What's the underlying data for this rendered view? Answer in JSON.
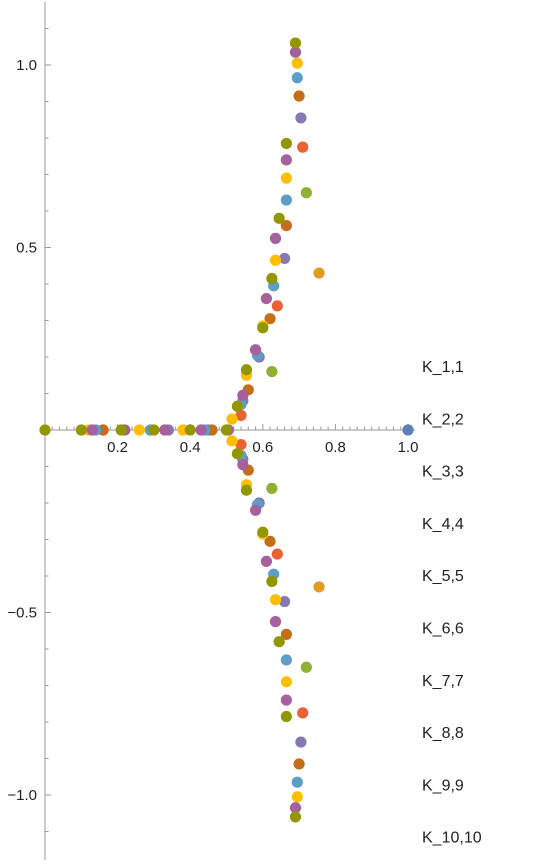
{
  "chart_data": {
    "type": "scatter",
    "title": "",
    "xlabel": "",
    "ylabel": "",
    "xlim": [
      0.0,
      1.0
    ],
    "ylim": [
      -1.2,
      1.2
    ],
    "x_ticks": [
      "0.2",
      "0.4",
      "0.6",
      "0.8",
      "1.0"
    ],
    "y_ticks": [
      "-1.0",
      "-0.5",
      "0.5",
      "1.0"
    ],
    "legend_position": "right",
    "grid": false,
    "legend": [
      "K_1,1",
      "K_2,2",
      "K_3,3",
      "K_4,4",
      "K_5,5",
      "K_6,6",
      "K_7,7",
      "K_8,8",
      "K_9,9",
      "K_10,10"
    ],
    "series": [
      {
        "color": "#5e81b5",
        "points": [
          [
            1.0,
            0.0
          ]
        ]
      },
      {
        "color": "#e19c24",
        "points": [
          [
            0.755,
            0.43
          ],
          [
            0.755,
            -0.43
          ]
        ]
      },
      {
        "color": "#8fb032",
        "points": [
          [
            0.72,
            0.65
          ],
          [
            0.72,
            -0.65
          ],
          [
            0.625,
            0.16
          ],
          [
            0.625,
            -0.16
          ]
        ]
      },
      {
        "color": "#eb6235",
        "points": [
          [
            0.71,
            0.775
          ],
          [
            0.71,
            -0.775
          ],
          [
            0.64,
            0.34
          ],
          [
            0.64,
            -0.34
          ],
          [
            0.54,
            0.04
          ],
          [
            0.54,
            -0.04
          ],
          [
            0.16,
            0.0
          ]
        ]
      },
      {
        "color": "#8778b3",
        "points": [
          [
            0.705,
            0.855
          ],
          [
            0.705,
            -0.855
          ],
          [
            0.66,
            0.47
          ],
          [
            0.66,
            -0.47
          ],
          [
            0.59,
            0.2
          ],
          [
            0.59,
            -0.2
          ],
          [
            0.545,
            0.08
          ],
          [
            0.545,
            -0.08
          ],
          [
            0.45,
            0.0
          ],
          [
            0.34,
            0.0
          ]
        ]
      },
      {
        "color": "#c56e1a",
        "points": [
          [
            0.7,
            0.915
          ],
          [
            0.7,
            -0.915
          ],
          [
            0.665,
            0.56
          ],
          [
            0.665,
            -0.56
          ],
          [
            0.62,
            0.305
          ],
          [
            0.62,
            -0.305
          ],
          [
            0.56,
            0.11
          ],
          [
            0.56,
            -0.11
          ],
          [
            0.46,
            0.0
          ],
          [
            0.16,
            0.0
          ]
        ]
      },
      {
        "color": "#5d9ec7",
        "points": [
          [
            0.695,
            0.965
          ],
          [
            0.695,
            -0.965
          ],
          [
            0.665,
            0.63
          ],
          [
            0.665,
            -0.63
          ],
          [
            0.63,
            0.395
          ],
          [
            0.63,
            -0.395
          ],
          [
            0.585,
            0.205
          ],
          [
            0.585,
            -0.205
          ],
          [
            0.54,
            0.07
          ],
          [
            0.54,
            -0.07
          ],
          [
            0.44,
            0.0
          ],
          [
            0.29,
            0.0
          ],
          [
            0.14,
            0.0
          ]
        ]
      },
      {
        "color": "#ffbf00",
        "points": [
          [
            0.695,
            1.005
          ],
          [
            0.695,
            -1.005
          ],
          [
            0.665,
            0.69
          ],
          [
            0.665,
            -0.69
          ],
          [
            0.635,
            0.465
          ],
          [
            0.635,
            -0.465
          ],
          [
            0.6,
            0.285
          ],
          [
            0.6,
            -0.285
          ],
          [
            0.555,
            0.15
          ],
          [
            0.555,
            -0.15
          ],
          [
            0.515,
            0.03
          ],
          [
            0.515,
            -0.03
          ],
          [
            0.38,
            0.0
          ],
          [
            0.26,
            0.0
          ],
          [
            0.12,
            0.0
          ]
        ]
      },
      {
        "color": "#a5609d",
        "points": [
          [
            0.69,
            1.035
          ],
          [
            0.69,
            -1.035
          ],
          [
            0.665,
            0.74
          ],
          [
            0.665,
            -0.74
          ],
          [
            0.635,
            0.525
          ],
          [
            0.635,
            -0.525
          ],
          [
            0.61,
            0.36
          ],
          [
            0.61,
            -0.36
          ],
          [
            0.58,
            0.22
          ],
          [
            0.58,
            -0.22
          ],
          [
            0.545,
            0.095
          ],
          [
            0.545,
            -0.095
          ],
          [
            0.505,
            0.0
          ],
          [
            0.43,
            0.0
          ],
          [
            0.33,
            0.0
          ],
          [
            0.22,
            0.0
          ],
          [
            0.13,
            0.0
          ]
        ]
      },
      {
        "color": "#929600",
        "points": [
          [
            0.69,
            1.06
          ],
          [
            0.69,
            -1.06
          ],
          [
            0.665,
            0.785
          ],
          [
            0.665,
            -0.785
          ],
          [
            0.645,
            0.58
          ],
          [
            0.645,
            -0.58
          ],
          [
            0.625,
            0.415
          ],
          [
            0.625,
            -0.415
          ],
          [
            0.6,
            0.28
          ],
          [
            0.6,
            -0.28
          ],
          [
            0.555,
            0.165
          ],
          [
            0.555,
            -0.165
          ],
          [
            0.53,
            0.065
          ],
          [
            0.53,
            -0.065
          ],
          [
            0.5,
            0.0
          ],
          [
            0.4,
            0.0
          ],
          [
            0.3,
            0.0
          ],
          [
            0.21,
            0.0
          ],
          [
            0.1,
            0.0
          ],
          [
            0.0,
            0.0
          ]
        ]
      }
    ]
  }
}
